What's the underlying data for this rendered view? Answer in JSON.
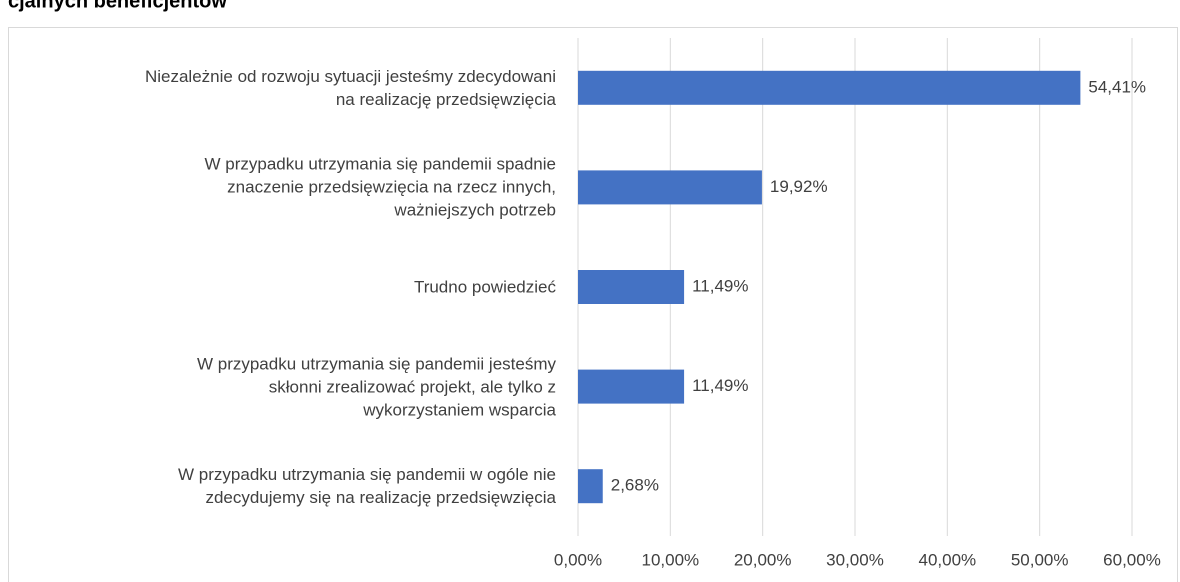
{
  "chart_data": {
    "type": "bar",
    "orientation": "horizontal",
    "title": "cjalnych beneficjentów",
    "categories": [
      "Niezależnie od rozwoju sytuacji jesteśmy zdecydowani\nna realizację przedsięwzięcia",
      "W przypadku utrzymania się pandemii spadnie\nznaczenie przedsięwzięcia na rzecz innych,\nważniejszych potrzeb",
      "Trudno powiedzieć",
      "W przypadku utrzymania się pandemii jesteśmy\nskłonni zrealizować projekt, ale tylko z\nwykorzystaniem wsparcia",
      "W przypadku utrzymania się pandemii w ogóle nie\nzdecydujemy się na realizację przedsięwzięcia"
    ],
    "values": [
      54.41,
      19.92,
      11.49,
      11.49,
      2.68
    ],
    "value_labels": [
      "54,41%",
      "19,92%",
      "11,49%",
      "11,49%",
      "2,68%"
    ],
    "color": "#4472c4",
    "xlim": [
      0,
      60
    ],
    "xticks": [
      {
        "value": 0,
        "label": "0,00%"
      },
      {
        "value": 10,
        "label": "10,00%"
      },
      {
        "value": 20,
        "label": "20,00%"
      },
      {
        "value": 30,
        "label": "30,00%"
      },
      {
        "value": 40,
        "label": "40,00%"
      },
      {
        "value": 50,
        "label": "50,00%"
      },
      {
        "value": 60,
        "label": "60,00%"
      }
    ],
    "grid": true
  }
}
